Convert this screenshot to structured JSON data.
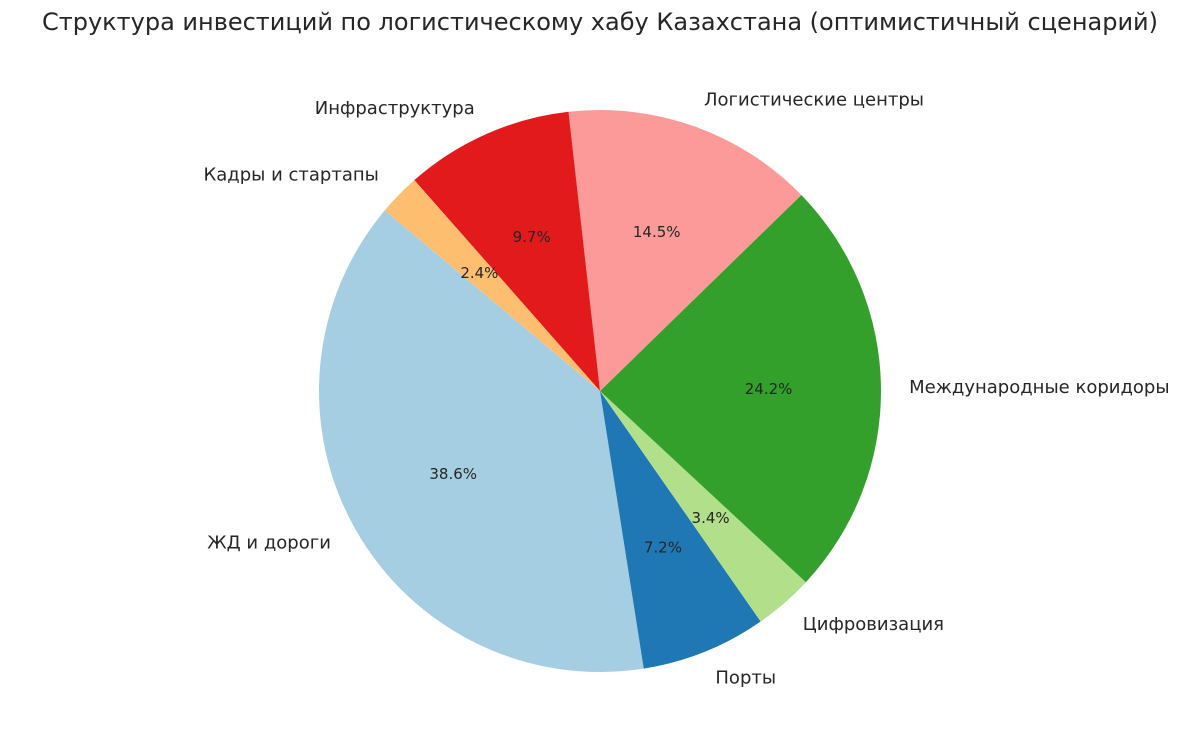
{
  "chart_data": {
    "type": "pie",
    "title": "Структура инвестиций по логистическому хабу Казахстана (оптимистичный сценарий)",
    "start_angle_deg": 140,
    "direction": "counterclockwise",
    "slices": [
      {
        "label": "ЖД и дороги",
        "value": 38.6,
        "pct_label": "38.6%",
        "color": "#a6cee3"
      },
      {
        "label": "Порты",
        "value": 7.2,
        "pct_label": "7.2%",
        "color": "#1f78b4"
      },
      {
        "label": "Цифровизация",
        "value": 3.4,
        "pct_label": "3.4%",
        "color": "#b2df8a"
      },
      {
        "label": "Международные коридоры",
        "value": 24.2,
        "pct_label": "24.2%",
        "color": "#33a02c"
      },
      {
        "label": "Логистические центры",
        "value": 14.5,
        "pct_label": "14.5%",
        "color": "#fb9a99"
      },
      {
        "label": "Инфраструктура",
        "value": 9.7,
        "pct_label": "9.7%",
        "color": "#e31a1c"
      },
      {
        "label": "Кадры и стартапы",
        "value": 2.4,
        "pct_label": "2.4%",
        "color": "#fdbf6f"
      }
    ]
  }
}
